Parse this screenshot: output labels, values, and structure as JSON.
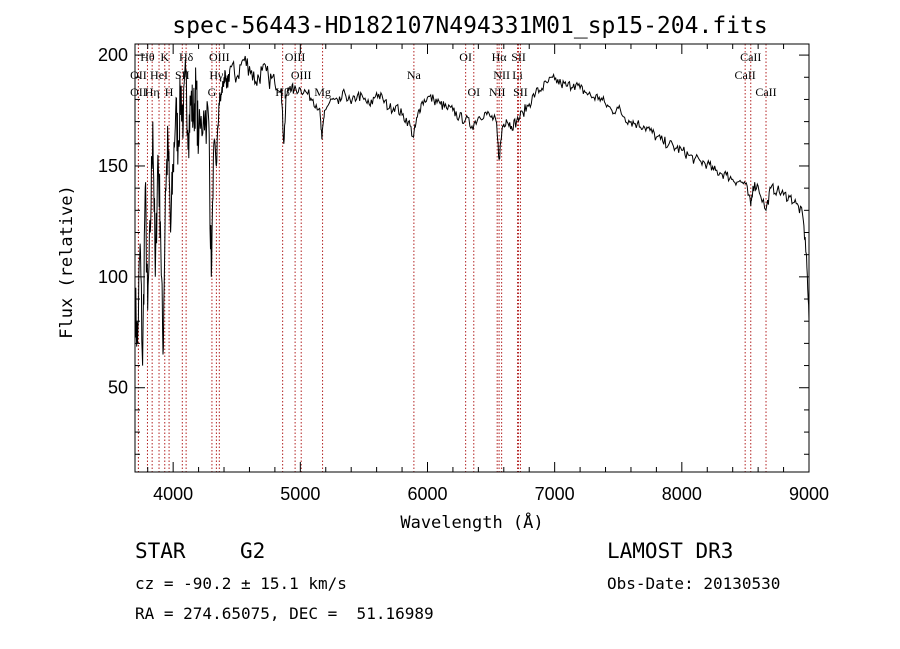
{
  "chart_data": {
    "type": "line",
    "title": "spec-56443-HD182107N494331M01_sp15-204.fits",
    "xlabel": "Wavelength (Å)",
    "ylabel": "Flux (relative)",
    "xlim": [
      3700,
      9000
    ],
    "ylim": [
      12,
      205
    ],
    "xticks": [
      4000,
      5000,
      6000,
      7000,
      8000,
      9000
    ],
    "yticks": [
      50,
      100,
      150,
      200
    ],
    "series": [
      {
        "name": "flux",
        "points": [
          [
            3700,
            90
          ],
          [
            3720,
            70
          ],
          [
            3740,
            115
          ],
          [
            3760,
            60
          ],
          [
            3780,
            140
          ],
          [
            3800,
            85
          ],
          [
            3820,
            120
          ],
          [
            3840,
            170
          ],
          [
            3860,
            100
          ],
          [
            3880,
            155
          ],
          [
            3900,
            125
          ],
          [
            3920,
            65
          ],
          [
            3940,
            140
          ],
          [
            3960,
            160
          ],
          [
            3980,
            120
          ],
          [
            4000,
            150
          ],
          [
            4020,
            175
          ],
          [
            4040,
            160
          ],
          [
            4060,
            185
          ],
          [
            4080,
            170
          ],
          [
            4100,
            190
          ],
          [
            4120,
            165
          ],
          [
            4140,
            180
          ],
          [
            4160,
            172
          ],
          [
            4180,
            185
          ],
          [
            4200,
            160
          ],
          [
            4240,
            175
          ],
          [
            4280,
            170
          ],
          [
            4300,
            100
          ],
          [
            4320,
            160
          ],
          [
            4340,
            150
          ],
          [
            4360,
            178
          ],
          [
            4380,
            182
          ],
          [
            4400,
            190
          ],
          [
            4420,
            185
          ],
          [
            4450,
            195
          ],
          [
            4500,
            190
          ],
          [
            4550,
            198
          ],
          [
            4600,
            195
          ],
          [
            4650,
            188
          ],
          [
            4700,
            193
          ],
          [
            4750,
            190
          ],
          [
            4800,
            187
          ],
          [
            4850,
            185
          ],
          [
            4870,
            160
          ],
          [
            4890,
            182
          ],
          [
            4920,
            186
          ],
          [
            4950,
            184
          ],
          [
            5000,
            185
          ],
          [
            5050,
            183
          ],
          [
            5100,
            180
          ],
          [
            5150,
            176
          ],
          [
            5170,
            162
          ],
          [
            5190,
            175
          ],
          [
            5250,
            180
          ],
          [
            5300,
            178
          ],
          [
            5350,
            183
          ],
          [
            5400,
            178
          ],
          [
            5450,
            182
          ],
          [
            5500,
            180
          ],
          [
            5550,
            177
          ],
          [
            5600,
            183
          ],
          [
            5650,
            180
          ],
          [
            5700,
            176
          ],
          [
            5750,
            177
          ],
          [
            5800,
            173
          ],
          [
            5850,
            170
          ],
          [
            5890,
            163
          ],
          [
            5920,
            172
          ],
          [
            5950,
            178
          ],
          [
            6000,
            181
          ],
          [
            6050,
            180
          ],
          [
            6100,
            178
          ],
          [
            6150,
            176
          ],
          [
            6200,
            175
          ],
          [
            6250,
            172
          ],
          [
            6300,
            171
          ],
          [
            6350,
            168
          ],
          [
            6400,
            172
          ],
          [
            6450,
            174
          ],
          [
            6500,
            172
          ],
          [
            6540,
            170
          ],
          [
            6563,
            153
          ],
          [
            6590,
            168
          ],
          [
            6620,
            171
          ],
          [
            6660,
            168
          ],
          [
            6700,
            170
          ],
          [
            6750,
            174
          ],
          [
            6800,
            178
          ],
          [
            6850,
            183
          ],
          [
            6900,
            185
          ],
          [
            6950,
            188
          ],
          [
            7000,
            189
          ],
          [
            7050,
            187
          ],
          [
            7100,
            186
          ],
          [
            7150,
            187
          ],
          [
            7200,
            185
          ],
          [
            7250,
            183
          ],
          [
            7300,
            181
          ],
          [
            7350,
            181
          ],
          [
            7400,
            178
          ],
          [
            7450,
            175
          ],
          [
            7500,
            176
          ],
          [
            7550,
            172
          ],
          [
            7600,
            170
          ],
          [
            7650,
            169
          ],
          [
            7700,
            168
          ],
          [
            7750,
            166
          ],
          [
            7800,
            163
          ],
          [
            7850,
            161
          ],
          [
            7900,
            160
          ],
          [
            7950,
            158
          ],
          [
            8000,
            157
          ],
          [
            8050,
            155
          ],
          [
            8100,
            153
          ],
          [
            8150,
            152
          ],
          [
            8200,
            151
          ],
          [
            8250,
            148
          ],
          [
            8300,
            147
          ],
          [
            8350,
            146
          ],
          [
            8400,
            144
          ],
          [
            8450,
            143
          ],
          [
            8500,
            142
          ],
          [
            8542,
            132
          ],
          [
            8560,
            141
          ],
          [
            8600,
            141
          ],
          [
            8662,
            130
          ],
          [
            8700,
            140
          ],
          [
            8750,
            139
          ],
          [
            8800,
            137
          ],
          [
            8850,
            136
          ],
          [
            8900,
            133
          ],
          [
            8950,
            128
          ],
          [
            8980,
            110
          ],
          [
            9000,
            80
          ]
        ]
      }
    ],
    "lines": [
      {
        "name": "Hθ",
        "x": 3798,
        "row": 0
      },
      {
        "name": "OII",
        "x": 3727,
        "row": 1
      },
      {
        "name": "OII",
        "x": 3727,
        "row": 2
      },
      {
        "name": "K",
        "x": 3934,
        "row": 0
      },
      {
        "name": "HeI",
        "x": 3889,
        "row": 1
      },
      {
        "name": "Hη",
        "x": 3835,
        "row": 2
      },
      {
        "name": "H",
        "x": 3968,
        "row": 2
      },
      {
        "name": "SII",
        "x": 4072,
        "row": 1
      },
      {
        "name": "Hδ",
        "x": 4102,
        "row": 0
      },
      {
        "name": "OIII",
        "x": 4363,
        "row": 0
      },
      {
        "name": "Hγ",
        "x": 4340,
        "row": 1
      },
      {
        "name": "G",
        "x": 4305,
        "row": 2
      },
      {
        "name": "Hβ",
        "x": 4861,
        "row": 2
      },
      {
        "name": "OIII",
        "x": 4959,
        "row": 0
      },
      {
        "name": "OIII",
        "x": 5007,
        "row": 1
      },
      {
        "name": "Mg",
        "x": 5175,
        "row": 2
      },
      {
        "name": "Na",
        "x": 5893,
        "row": 1
      },
      {
        "name": "OI",
        "x": 6300,
        "row": 0
      },
      {
        "name": "OI",
        "x": 6364,
        "row": 2
      },
      {
        "name": "Hα",
        "x": 6563,
        "row": 0
      },
      {
        "name": "SII",
        "x": 6716,
        "row": 0
      },
      {
        "name": "NII",
        "x": 6583,
        "row": 1
      },
      {
        "name": "Li",
        "x": 6708,
        "row": 1
      },
      {
        "name": "NII",
        "x": 6548,
        "row": 2
      },
      {
        "name": "SII",
        "x": 6731,
        "row": 2
      },
      {
        "name": "CaII",
        "x": 8542,
        "row": 0
      },
      {
        "name": "CaII",
        "x": 8498,
        "row": 1
      },
      {
        "name": "CaII",
        "x": 8662,
        "row": 2
      }
    ],
    "colors": {
      "spectrum": "#000000",
      "lines": "#b22222",
      "axes": "#000000"
    }
  },
  "info": {
    "object_class": "STAR",
    "subclass": "G2",
    "survey": "LAMOST DR3",
    "cz": "cz = -90.2 ± 15.1 km/s",
    "obs_date": "Obs-Date: 20130530",
    "radec": "RA = 274.65075, DEC =  51.16989"
  }
}
